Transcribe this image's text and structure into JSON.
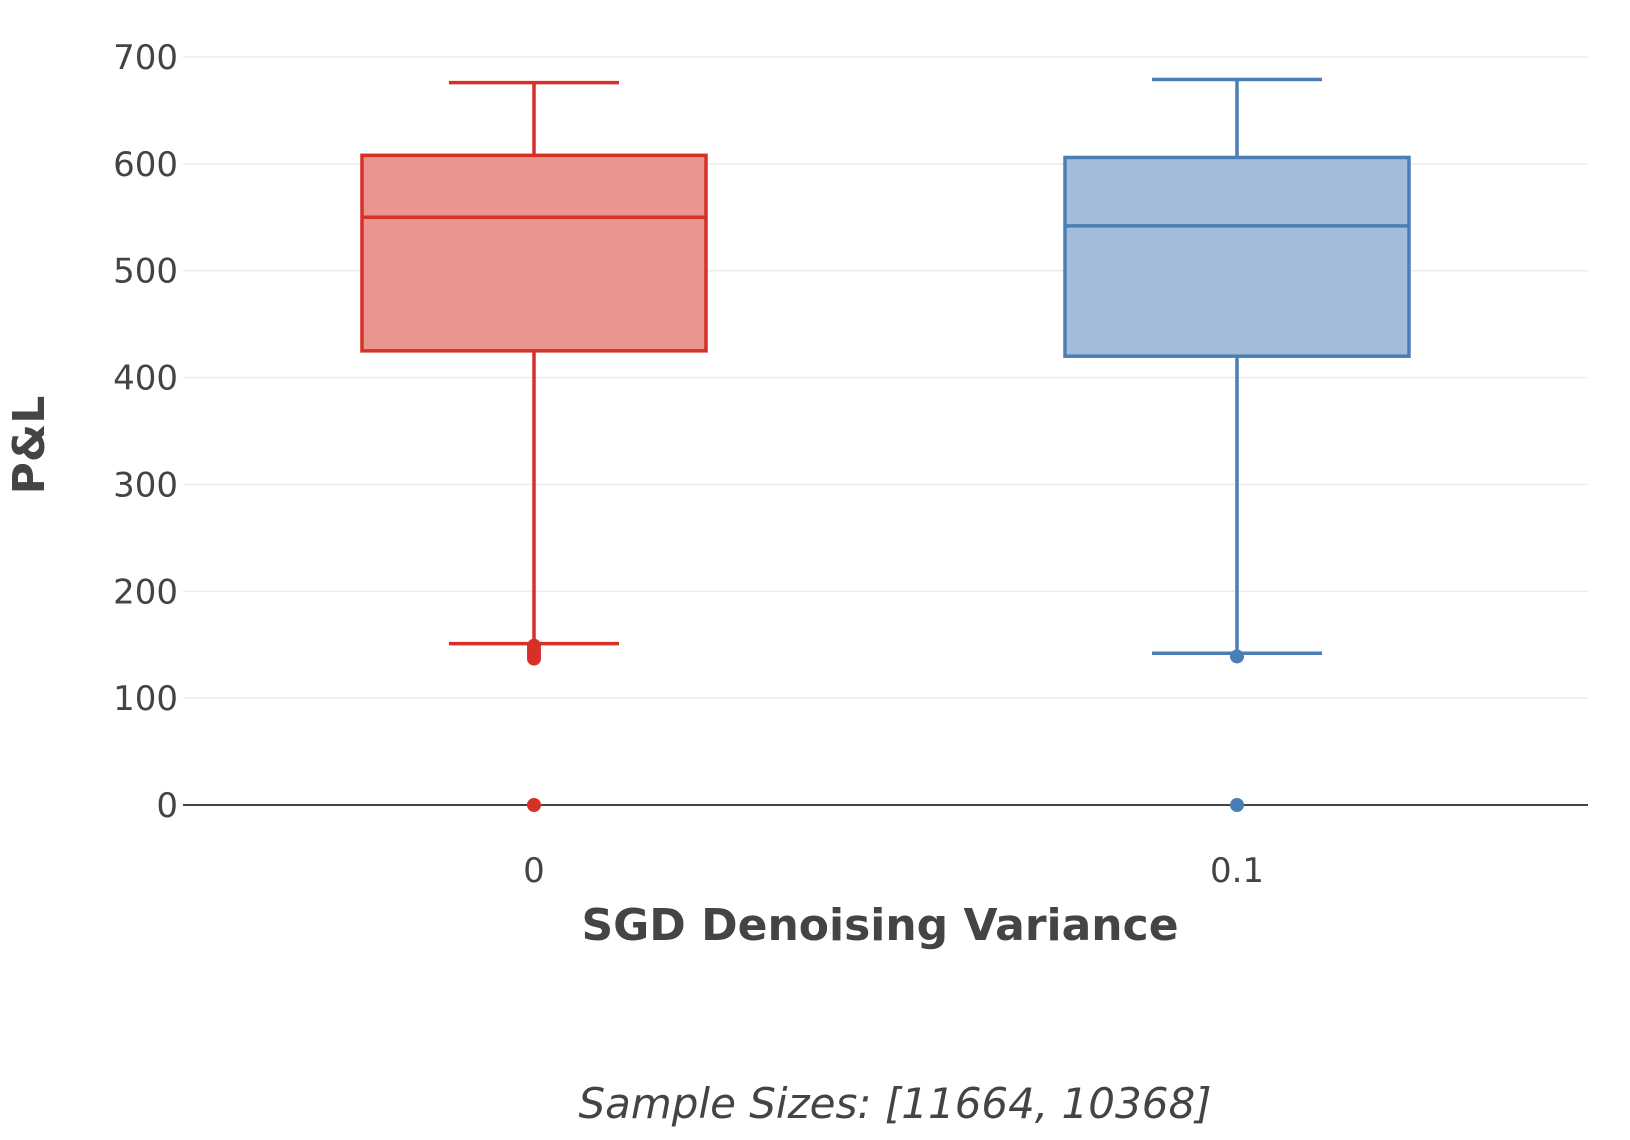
{
  "chart_data": {
    "type": "box",
    "xlabel": "SGD Denoising Variance",
    "ylabel": "P&L",
    "ylim": [
      -40,
      730
    ],
    "yticks": [
      0,
      100,
      200,
      300,
      400,
      500,
      600,
      700
    ],
    "categories": [
      "0",
      "0.1"
    ],
    "grid": true,
    "annotation": "Sample Sizes: [11664, 10368]",
    "series": [
      {
        "category": "0",
        "color": "#d73027",
        "fill": "#e8968f",
        "stats": {
          "lower_whisker": 151,
          "q1": 425,
          "median": 550,
          "q3": 608,
          "upper_whisker": 676
        },
        "outliers": [
          0,
          137,
          140,
          143,
          146,
          149
        ]
      },
      {
        "category": "0.1",
        "color": "#4a7fb5",
        "fill": "#a2bcd9",
        "stats": {
          "lower_whisker": 142,
          "q1": 420,
          "median": 542,
          "q3": 606,
          "upper_whisker": 679
        },
        "outliers": [
          0,
          139
        ]
      }
    ]
  }
}
